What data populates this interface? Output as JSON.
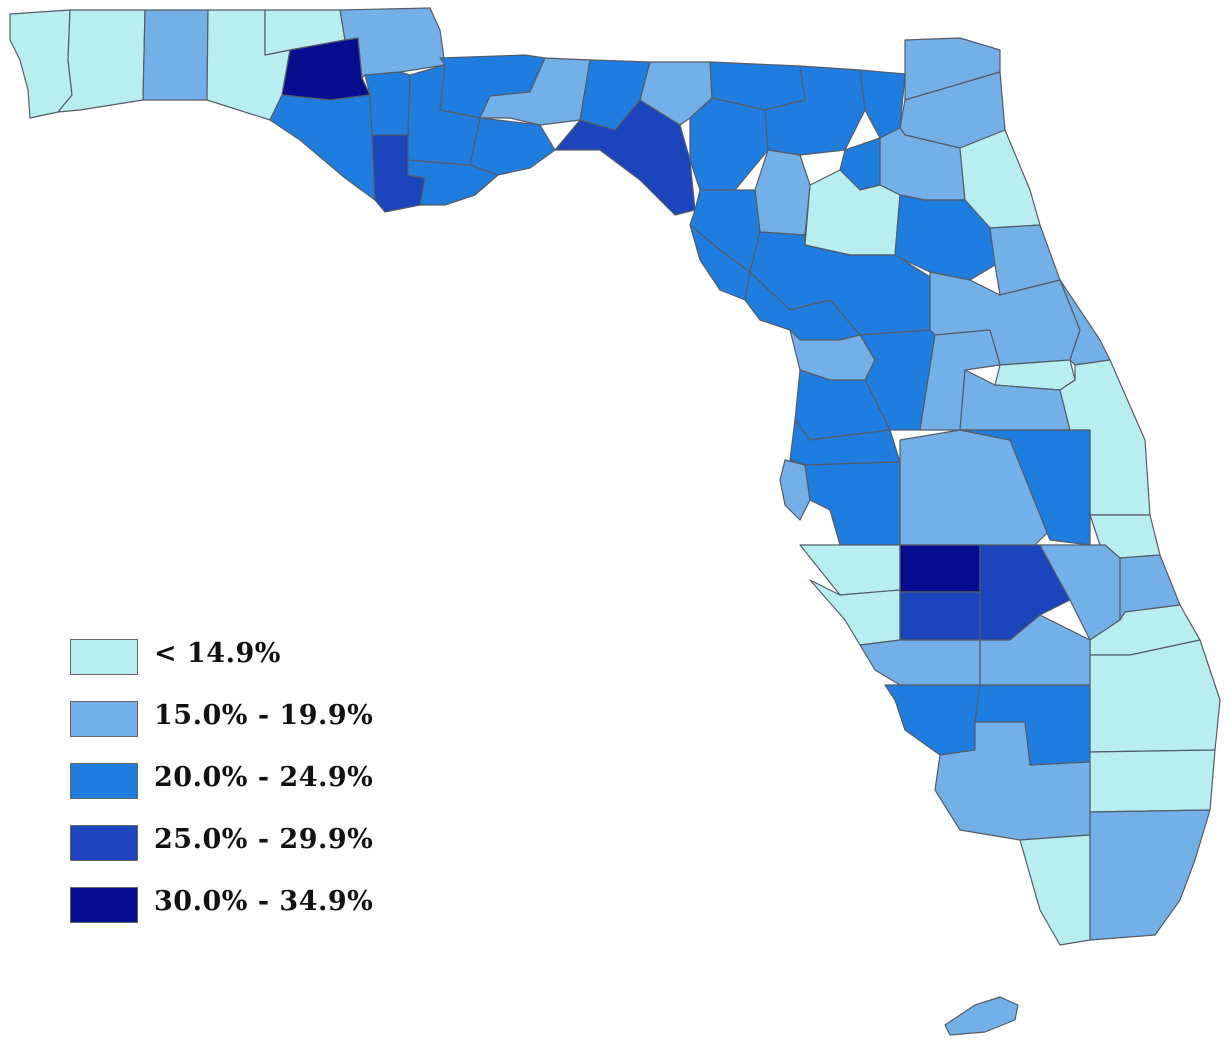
{
  "legend": {
    "items": [
      {
        "label": "< 14.9%",
        "color": "#b9eef0"
      },
      {
        "label": "15.0% - 19.9%",
        "color": "#74b0e8"
      },
      {
        "label": "20.0% - 24.9%",
        "color": "#1f7ddf"
      },
      {
        "label": "25.0% - 29.9%",
        "color": "#1c44bd"
      },
      {
        "label": "30.0% - 34.9%",
        "color": "#050d8e"
      }
    ]
  },
  "map": {
    "background": "#ffffff",
    "border_color": "#555b66"
  }
}
